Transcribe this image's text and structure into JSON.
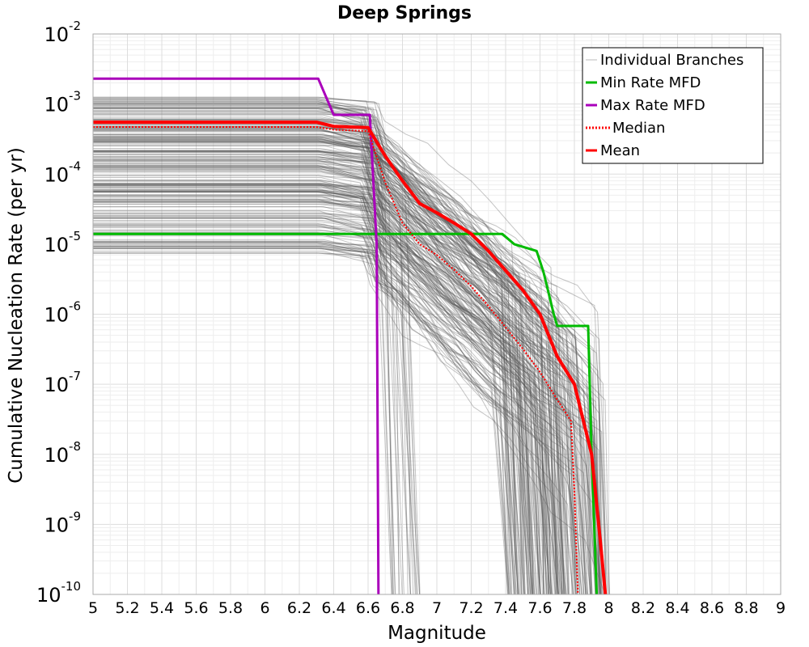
{
  "chart_data": {
    "type": "line",
    "title": "Deep Springs",
    "xlabel": "Magnitude",
    "ylabel": "Cumulative Nucleation Rate (per yr)",
    "x_range": [
      5,
      9
    ],
    "y_range": [
      1e-10,
      0.01
    ],
    "y_scale": "log",
    "grid": true,
    "legend_position": "top-right",
    "x_ticks": [
      "5",
      "5.2",
      "5.4",
      "5.6",
      "5.8",
      "6",
      "6.2",
      "6.4",
      "6.6",
      "6.8",
      "7",
      "7.2",
      "7.4",
      "7.6",
      "7.8",
      "8",
      "8.2",
      "8.4",
      "8.6",
      "8.8",
      "9"
    ],
    "y_ticks": [
      {
        "base": "10",
        "exp": "-2",
        "value": 0.01
      },
      {
        "base": "10",
        "exp": "-3",
        "value": 0.001
      },
      {
        "base": "10",
        "exp": "-4",
        "value": 0.0001
      },
      {
        "base": "10",
        "exp": "-5",
        "value": 1e-05
      },
      {
        "base": "10",
        "exp": "-6",
        "value": 1e-06
      },
      {
        "base": "10",
        "exp": "-7",
        "value": 1e-07
      },
      {
        "base": "10",
        "exp": "-8",
        "value": 1e-08
      },
      {
        "base": "10",
        "exp": "-9",
        "value": 1e-09
      },
      {
        "base": "10",
        "exp": "-10",
        "value": 1e-10
      }
    ],
    "series": [
      {
        "name": "Min Rate MFD",
        "color": "#00bb00",
        "style": "solid",
        "width": 3,
        "x": [
          5.0,
          7.38,
          7.45,
          7.58,
          7.62,
          7.68,
          7.7,
          7.88,
          7.9,
          7.93
        ],
        "y": [
          1.4e-05,
          1.4e-05,
          1e-05,
          8e-06,
          4e-06,
          1e-06,
          6.8e-07,
          6.8e-07,
          1e-08,
          1e-10
        ]
      },
      {
        "name": "Max Rate MFD",
        "color": "#aa00bb",
        "style": "solid",
        "width": 3,
        "x": [
          5.0,
          6.31,
          6.4,
          6.61,
          6.65,
          6.66
        ],
        "y": [
          0.0023,
          0.0023,
          0.0007,
          0.0007,
          1e-05,
          1e-10
        ]
      },
      {
        "name": "Median",
        "color": "#ff0000",
        "style": "dotted",
        "width": 2,
        "x": [
          5.0,
          6.3,
          6.4,
          6.6,
          6.7,
          6.8,
          6.9,
          7.0,
          7.1,
          7.2,
          7.3,
          7.4,
          7.5,
          7.6,
          7.7,
          7.78,
          7.8,
          7.82
        ],
        "y": [
          0.00047,
          0.00047,
          0.00043,
          0.00041,
          7.5e-05,
          2e-05,
          1e-05,
          7e-06,
          4.3e-06,
          2.5e-06,
          1.3e-06,
          6.5e-07,
          3.2e-07,
          1.5e-07,
          6e-08,
          3e-08,
          3e-09,
          1e-10
        ]
      },
      {
        "name": "Mean",
        "color": "#ff0000",
        "style": "solid",
        "width": 4,
        "x": [
          5.0,
          6.3,
          6.4,
          6.6,
          6.7,
          6.8,
          6.9,
          7.0,
          7.1,
          7.2,
          7.3,
          7.4,
          7.5,
          7.6,
          7.7,
          7.8,
          7.9,
          7.95,
          7.98
        ],
        "y": [
          0.00055,
          0.00055,
          0.00048,
          0.00046,
          0.00018,
          8e-05,
          3.8e-05,
          2.8e-05,
          2e-05,
          1.4e-05,
          8e-06,
          4.2e-06,
          2.2e-06,
          1e-06,
          2.5e-07,
          1e-07,
          1e-08,
          6e-10,
          1e-10
        ]
      }
    ],
    "legend": [
      {
        "label": "Individual Branches",
        "color": "#bbbbbb",
        "style": "solid"
      },
      {
        "label": "Min Rate MFD",
        "color": "#00bb00",
        "style": "solid"
      },
      {
        "label": "Max Rate MFD",
        "color": "#aa00bb",
        "style": "solid"
      },
      {
        "label": "Median",
        "color": "#ff0000",
        "style": "dotted"
      },
      {
        "label": "Mean",
        "color": "#ff0000",
        "style": "solid"
      }
    ],
    "branch_color": "#555555"
  }
}
